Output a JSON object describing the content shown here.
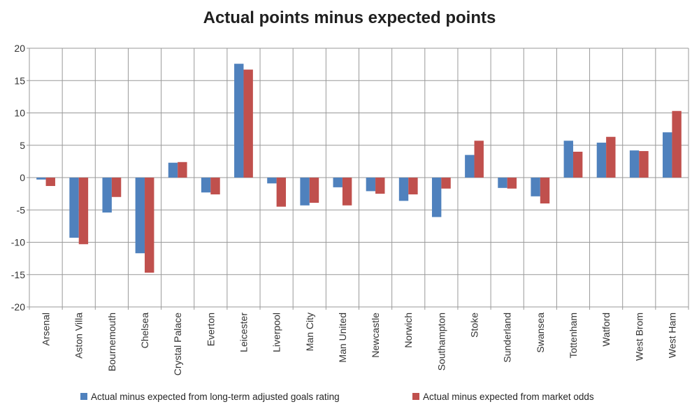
{
  "chart_data": {
    "type": "bar",
    "title": "Actual points minus expected points",
    "categories": [
      "Arsenal",
      "Aston Villa",
      "Bournemouth",
      "Chelsea",
      "Crystal Palace",
      "Everton",
      "Leicester",
      "Liverpool",
      "Man City",
      "Man United",
      "Newcastle",
      "Norwich",
      "Southampton",
      "Stoke",
      "Sunderland",
      "Swansea",
      "Tottenham",
      "Watford",
      "West Brom",
      "West Ham"
    ],
    "series": [
      {
        "name": "Actual minus expected from long-term adjusted goals rating",
        "color": "#4F81BD",
        "values": [
          -0.3,
          -9.3,
          -5.4,
          -11.7,
          2.3,
          -2.3,
          17.6,
          -0.9,
          -4.3,
          -1.5,
          -2.1,
          -3.6,
          -6.1,
          3.5,
          -1.6,
          -2.9,
          5.7,
          5.4,
          4.2,
          7.0
        ]
      },
      {
        "name": "Actual minus expected from market odds",
        "color": "#C0504D",
        "values": [
          -1.3,
          -10.3,
          -3.0,
          -14.7,
          2.4,
          -2.6,
          16.7,
          -4.5,
          -3.9,
          -4.3,
          -2.5,
          -2.6,
          -1.7,
          5.7,
          -1.7,
          -4.0,
          4.0,
          6.3,
          4.1,
          10.3
        ]
      }
    ],
    "xlabel": "",
    "ylabel": "",
    "ylim": [
      -20,
      20
    ],
    "yticks": [
      20,
      15,
      10,
      5,
      0,
      -5,
      -10,
      -15,
      -20
    ],
    "grid": "both",
    "legend_position": "bottom"
  },
  "colors": {
    "grid": "#999999",
    "axis": "#999999",
    "title_text": "#1f1f1f",
    "tick_text": "#333333",
    "legend_text": "#262626",
    "background": "#ffffff"
  }
}
